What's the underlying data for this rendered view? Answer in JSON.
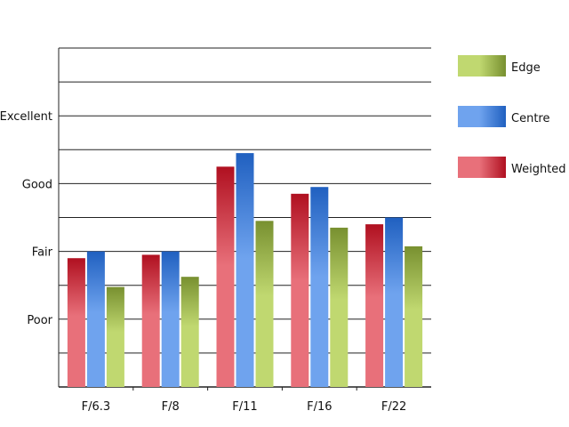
{
  "chart_data": {
    "type": "bar",
    "categories": [
      "F/6.3",
      "F/8",
      "F/11",
      "F/16",
      "F/22"
    ],
    "ylim": [
      0,
      10
    ],
    "y_tick_labels": [
      {
        "value": 2,
        "label": "Poor"
      },
      {
        "value": 4,
        "label": "Fair"
      },
      {
        "value": 6,
        "label": "Good"
      },
      {
        "value": 8,
        "label": "Excellent"
      }
    ],
    "gridlines": [
      1,
      2,
      3,
      4,
      5,
      6,
      7,
      8,
      9,
      10
    ],
    "grid": true,
    "legend_position": "right",
    "series": [
      {
        "name": "Weighted",
        "values": [
          3.8,
          3.9,
          6.5,
          5.7,
          4.8
        ],
        "color_light": "#e8707a",
        "color_dark": "#b01020"
      },
      {
        "name": "Centre",
        "values": [
          4.0,
          4.0,
          6.9,
          5.9,
          5.0
        ],
        "color_light": "#6fa3ee",
        "color_dark": "#2060c0"
      },
      {
        "name": "Edge",
        "values": [
          2.95,
          3.25,
          4.9,
          4.7,
          4.15
        ],
        "color_light": "#c0d870",
        "color_dark": "#789030"
      }
    ],
    "legend_order": [
      "Edge",
      "Centre",
      "Weighted"
    ]
  }
}
